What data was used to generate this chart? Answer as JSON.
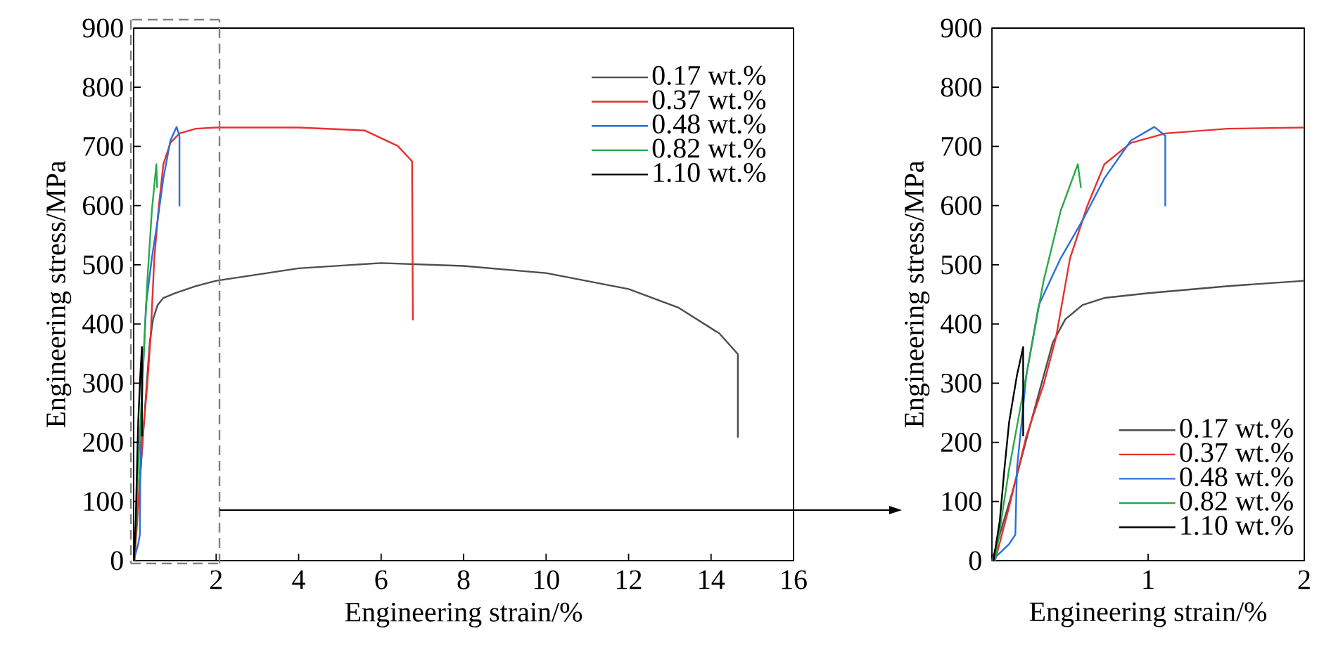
{
  "chart_data": [
    {
      "type": "line",
      "xlabel": "Engineering strain/%",
      "ylabel": "Engineering stress/MPa",
      "xlim": [
        0,
        16
      ],
      "ylim": [
        0,
        900
      ],
      "xticks": [
        {
          "value": 0,
          "label": null
        },
        2,
        4,
        6,
        8,
        10,
        12,
        14,
        16
      ],
      "yticks": [
        0,
        100,
        200,
        300,
        400,
        500,
        600,
        700,
        800,
        900
      ],
      "legend": "top right",
      "series": [
        {
          "name": "0.17 wt.%",
          "color": "#4d4d4d",
          "x": [
            0,
            0.13,
            0.25,
            0.39,
            0.47,
            0.58,
            0.72,
            1.0,
            1.51,
            2.0,
            4,
            6,
            8,
            10,
            12,
            13.2,
            14.2,
            14.65,
            14.65
          ],
          "values": [
            0,
            115,
            234,
            369,
            408,
            432,
            444,
            452,
            464,
            473,
            494,
            503,
            498,
            486,
            459,
            428,
            384,
            349,
            208
          ]
        },
        {
          "name": "0.37 wt.%",
          "color": "#e8302f",
          "x": [
            0.02,
            0.11,
            0.22,
            0.33,
            0.41,
            0.5,
            0.61,
            0.72,
            0.89,
            1.11,
            1.51,
            2.0,
            4,
            5.6,
            6.4,
            6.75,
            6.77
          ],
          "values": [
            0,
            91,
            210,
            297,
            377,
            511,
            599,
            670,
            706,
            722,
            730,
            732,
            732,
            727,
            701,
            675,
            406
          ]
        },
        {
          "name": "0.48 wt.%",
          "color": "#2a6fdb",
          "x": [
            0,
            0.11,
            0.15,
            0.16,
            0.22,
            0.3,
            0.44,
            0.58,
            0.72,
            0.89,
            1.04,
            1.11,
            1.11
          ],
          "values": [
            0,
            28,
            44,
            155,
            313,
            432,
            511,
            575,
            646,
            710,
            733,
            718,
            599
          ]
        },
        {
          "name": "0.82 wt.%",
          "color": "#2aa84a",
          "x": [
            0.02,
            0.11,
            0.22,
            0.33,
            0.44,
            0.55,
            0.57
          ],
          "values": [
            0,
            155,
            313,
            472,
            591,
            670,
            630
          ]
        },
        {
          "name": "1.10 wt.%",
          "color": "#000000",
          "x": [
            0.01,
            0.05,
            0.08,
            0.11,
            0.16,
            0.2,
            0.2
          ],
          "values": [
            0,
            67,
            155,
            234,
            313,
            361,
            210
          ]
        }
      ]
    },
    {
      "type": "line",
      "xlabel": "Engineering strain/%",
      "ylabel": "Engineering stress/MPa",
      "xlim": [
        0,
        2
      ],
      "ylim": [
        0,
        900
      ],
      "xticks": [
        {
          "value": 0,
          "label": null
        },
        1,
        2
      ],
      "yticks": [
        0,
        100,
        200,
        300,
        400,
        500,
        600,
        700,
        800,
        900
      ],
      "legend": "bottom right",
      "series": [
        {
          "name": "0.17 wt.%",
          "color": "#4d4d4d",
          "x": [
            0,
            0.13,
            0.25,
            0.39,
            0.47,
            0.58,
            0.72,
            1.0,
            1.51,
            2.0
          ],
          "values": [
            0,
            115,
            234,
            369,
            408,
            432,
            444,
            452,
            464,
            473
          ]
        },
        {
          "name": "0.37 wt.%",
          "color": "#e8302f",
          "x": [
            0.02,
            0.11,
            0.22,
            0.33,
            0.41,
            0.5,
            0.61,
            0.72,
            0.89,
            1.11,
            1.51,
            2.0
          ],
          "values": [
            0,
            91,
            210,
            297,
            377,
            511,
            599,
            670,
            706,
            722,
            730,
            732
          ]
        },
        {
          "name": "0.48 wt.%",
          "color": "#2a6fdb",
          "x": [
            0,
            0.11,
            0.15,
            0.16,
            0.22,
            0.3,
            0.44,
            0.58,
            0.72,
            0.89,
            1.04,
            1.11,
            1.11
          ],
          "values": [
            0,
            28,
            44,
            155,
            313,
            432,
            511,
            575,
            646,
            710,
            733,
            718,
            599
          ]
        },
        {
          "name": "0.82 wt.%",
          "color": "#2aa84a",
          "x": [
            0.02,
            0.11,
            0.22,
            0.33,
            0.44,
            0.55,
            0.57
          ],
          "values": [
            0,
            155,
            313,
            472,
            591,
            670,
            630
          ]
        },
        {
          "name": "1.10 wt.%",
          "color": "#000000",
          "x": [
            0.01,
            0.05,
            0.08,
            0.11,
            0.16,
            0.2,
            0.2
          ],
          "values": [
            0,
            67,
            155,
            234,
            313,
            361,
            210
          ]
        }
      ]
    }
  ]
}
